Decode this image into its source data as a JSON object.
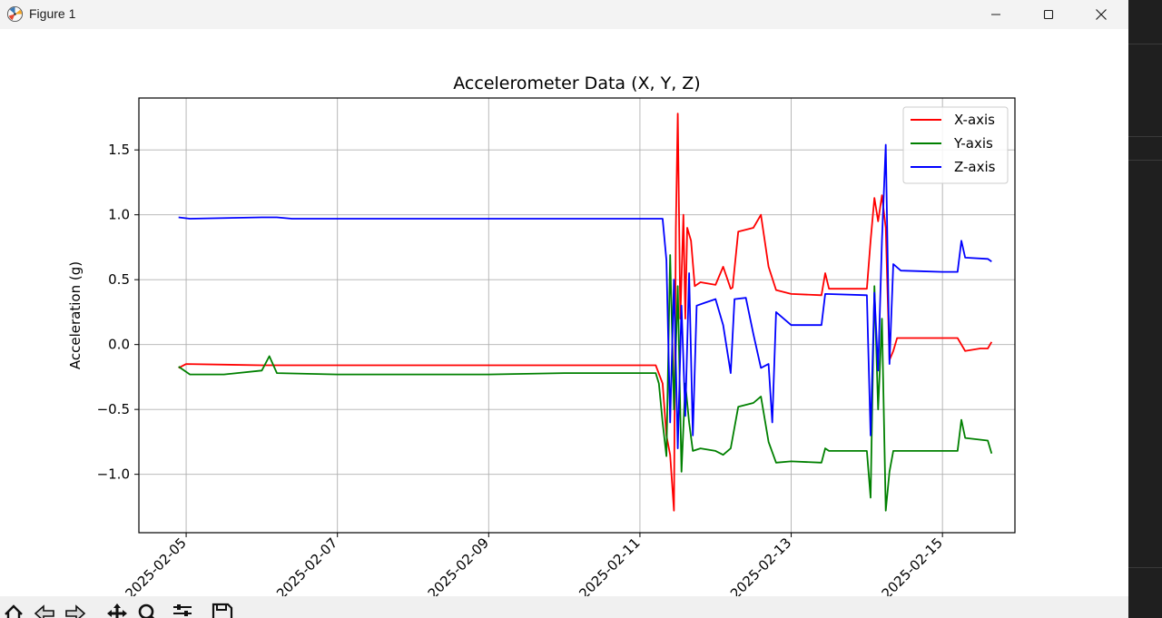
{
  "window": {
    "title": "Figure 1"
  },
  "toolbar": {
    "buttons": [
      "home-icon",
      "back-icon",
      "forward-icon",
      "pan-icon",
      "zoom-icon",
      "configure-icon",
      "save-icon"
    ]
  },
  "colors": {
    "x": "#ff0000",
    "y": "#008000",
    "z": "#0000ff"
  },
  "chart_data": {
    "type": "line",
    "title": "Accelerometer Data (X, Y, Z)",
    "xlabel": "",
    "ylabel": "Acceleration (g)",
    "x_type": "date",
    "xlim": [
      "2025-02-04 09:00",
      "2025-02-15 23:00"
    ],
    "ylim": [
      -1.45,
      1.9
    ],
    "xticks": [
      "2025-02-05",
      "2025-02-07",
      "2025-02-09",
      "2025-02-11",
      "2025-02-13",
      "2025-02-15"
    ],
    "yticks": [
      -1.0,
      -0.5,
      0.0,
      0.5,
      1.0,
      1.5
    ],
    "ytick_labels": [
      "−1.0",
      "−0.5",
      "0.0",
      "0.5",
      "1.0",
      "1.5"
    ],
    "grid": true,
    "legend": "top-right",
    "series": [
      {
        "name": "X-axis",
        "color": "#ff0000",
        "points": [
          [
            "2025-02-04 21:36",
            -0.18
          ],
          [
            "2025-02-05 00:00",
            -0.15
          ],
          [
            "2025-02-06 00:00",
            -0.16
          ],
          [
            "2025-02-07 00:00",
            -0.16
          ],
          [
            "2025-02-08 00:00",
            -0.16
          ],
          [
            "2025-02-09 00:00",
            -0.16
          ],
          [
            "2025-02-10 00:00",
            -0.16
          ],
          [
            "2025-02-11 00:00",
            -0.16
          ],
          [
            "2025-02-11 05:00",
            -0.16
          ],
          [
            "2025-02-11 07:12",
            -0.3
          ],
          [
            "2025-02-11 08:24",
            -0.7
          ],
          [
            "2025-02-11 09:36",
            -0.85
          ],
          [
            "2025-02-11 10:48",
            -1.28
          ],
          [
            "2025-02-11 11:24",
            0.9
          ],
          [
            "2025-02-11 12:00",
            1.78
          ],
          [
            "2025-02-11 12:48",
            0.2
          ],
          [
            "2025-02-11 13:48",
            1.0
          ],
          [
            "2025-02-11 14:24",
            0.2
          ],
          [
            "2025-02-11 15:00",
            0.9
          ],
          [
            "2025-02-11 16:12",
            0.8
          ],
          [
            "2025-02-11 17:24",
            0.45
          ],
          [
            "2025-02-11 19:12",
            0.48
          ],
          [
            "2025-02-12 00:00",
            0.46
          ],
          [
            "2025-02-12 02:24",
            0.6
          ],
          [
            "2025-02-12 04:48",
            0.43
          ],
          [
            "2025-02-12 05:24",
            0.44
          ],
          [
            "2025-02-12 07:12",
            0.87
          ],
          [
            "2025-02-12 12:00",
            0.9
          ],
          [
            "2025-02-12 14:24",
            1.0
          ],
          [
            "2025-02-12 15:36",
            0.8
          ],
          [
            "2025-02-12 16:48",
            0.6
          ],
          [
            "2025-02-12 19:12",
            0.42
          ],
          [
            "2025-02-13 00:00",
            0.39
          ],
          [
            "2025-02-13 09:36",
            0.38
          ],
          [
            "2025-02-13 10:48",
            0.55
          ],
          [
            "2025-02-13 12:00",
            0.43
          ],
          [
            "2025-02-14 00:00",
            0.43
          ],
          [
            "2025-02-14 01:12",
            0.8
          ],
          [
            "2025-02-14 02:24",
            1.13
          ],
          [
            "2025-02-14 03:36",
            0.95
          ],
          [
            "2025-02-14 04:48",
            1.15
          ],
          [
            "2025-02-14 06:00",
            0.9
          ],
          [
            "2025-02-14 07:12",
            -0.12
          ],
          [
            "2025-02-14 08:24",
            -0.05
          ],
          [
            "2025-02-14 09:36",
            0.05
          ],
          [
            "2025-02-15 00:00",
            0.05
          ],
          [
            "2025-02-15 04:48",
            0.05
          ],
          [
            "2025-02-15 07:12",
            -0.05
          ],
          [
            "2025-02-15 12:00",
            -0.03
          ],
          [
            "2025-02-15 14:24",
            -0.03
          ],
          [
            "2025-02-15 15:36",
            0.02
          ]
        ]
      },
      {
        "name": "Y-axis",
        "color": "#008000",
        "points": [
          [
            "2025-02-04 21:36",
            -0.17
          ],
          [
            "2025-02-05 01:12",
            -0.23
          ],
          [
            "2025-02-05 12:00",
            -0.23
          ],
          [
            "2025-02-06 00:00",
            -0.2
          ],
          [
            "2025-02-06 02:24",
            -0.09
          ],
          [
            "2025-02-06 04:48",
            -0.22
          ],
          [
            "2025-02-07 00:00",
            -0.23
          ],
          [
            "2025-02-08 00:00",
            -0.23
          ],
          [
            "2025-02-09 00:00",
            -0.23
          ],
          [
            "2025-02-10 00:00",
            -0.22
          ],
          [
            "2025-02-11 00:00",
            -0.22
          ],
          [
            "2025-02-11 05:00",
            -0.22
          ],
          [
            "2025-02-11 06:00",
            -0.3
          ],
          [
            "2025-02-11 07:12",
            -0.6
          ],
          [
            "2025-02-11 08:24",
            -0.86
          ],
          [
            "2025-02-11 09:36",
            0.69
          ],
          [
            "2025-02-11 10:48",
            -0.5
          ],
          [
            "2025-02-11 12:00",
            0.45
          ],
          [
            "2025-02-11 13:12",
            -0.98
          ],
          [
            "2025-02-11 14:24",
            -0.3
          ],
          [
            "2025-02-11 15:36",
            -0.6
          ],
          [
            "2025-02-11 16:48",
            -0.82
          ],
          [
            "2025-02-11 19:12",
            -0.8
          ],
          [
            "2025-02-12 00:00",
            -0.82
          ],
          [
            "2025-02-12 02:24",
            -0.85
          ],
          [
            "2025-02-12 04:48",
            -0.8
          ],
          [
            "2025-02-12 07:12",
            -0.48
          ],
          [
            "2025-02-12 12:00",
            -0.45
          ],
          [
            "2025-02-12 14:24",
            -0.4
          ],
          [
            "2025-02-12 16:48",
            -0.75
          ],
          [
            "2025-02-12 19:12",
            -0.91
          ],
          [
            "2025-02-13 00:00",
            -0.9
          ],
          [
            "2025-02-13 09:36",
            -0.91
          ],
          [
            "2025-02-13 10:48",
            -0.8
          ],
          [
            "2025-02-13 12:00",
            -0.82
          ],
          [
            "2025-02-14 00:00",
            -0.82
          ],
          [
            "2025-02-14 01:12",
            -1.18
          ],
          [
            "2025-02-14 02:24",
            0.45
          ],
          [
            "2025-02-14 03:36",
            -0.5
          ],
          [
            "2025-02-14 04:48",
            0.2
          ],
          [
            "2025-02-14 06:00",
            -1.28
          ],
          [
            "2025-02-14 07:12",
            -0.98
          ],
          [
            "2025-02-14 08:24",
            -0.82
          ],
          [
            "2025-02-15 00:00",
            -0.82
          ],
          [
            "2025-02-15 04:48",
            -0.82
          ],
          [
            "2025-02-15 06:00",
            -0.58
          ],
          [
            "2025-02-15 07:12",
            -0.72
          ],
          [
            "2025-02-15 14:24",
            -0.74
          ],
          [
            "2025-02-15 15:36",
            -0.84
          ]
        ]
      },
      {
        "name": "Z-axis",
        "color": "#0000ff",
        "points": [
          [
            "2025-02-04 21:36",
            0.98
          ],
          [
            "2025-02-05 01:12",
            0.97
          ],
          [
            "2025-02-06 00:00",
            0.98
          ],
          [
            "2025-02-06 04:48",
            0.98
          ],
          [
            "2025-02-06 09:36",
            0.97
          ],
          [
            "2025-02-07 00:00",
            0.97
          ],
          [
            "2025-02-08 00:00",
            0.97
          ],
          [
            "2025-02-09 00:00",
            0.97
          ],
          [
            "2025-02-10 00:00",
            0.97
          ],
          [
            "2025-02-11 00:00",
            0.97
          ],
          [
            "2025-02-11 07:12",
            0.97
          ],
          [
            "2025-02-11 08:24",
            0.65
          ],
          [
            "2025-02-11 09:36",
            -0.6
          ],
          [
            "2025-02-11 10:48",
            0.5
          ],
          [
            "2025-02-11 12:00",
            -0.8
          ],
          [
            "2025-02-11 13:12",
            0.3
          ],
          [
            "2025-02-11 14:24",
            -0.55
          ],
          [
            "2025-02-11 15:36",
            0.55
          ],
          [
            "2025-02-11 16:48",
            -0.7
          ],
          [
            "2025-02-11 18:00",
            0.3
          ],
          [
            "2025-02-11 20:24",
            0.32
          ],
          [
            "2025-02-12 00:00",
            0.35
          ],
          [
            "2025-02-12 02:24",
            0.15
          ],
          [
            "2025-02-12 04:48",
            -0.22
          ],
          [
            "2025-02-12 06:00",
            0.35
          ],
          [
            "2025-02-12 09:36",
            0.36
          ],
          [
            "2025-02-12 12:00",
            0.08
          ],
          [
            "2025-02-12 14:24",
            -0.18
          ],
          [
            "2025-02-12 16:48",
            -0.15
          ],
          [
            "2025-02-12 18:00",
            -0.6
          ],
          [
            "2025-02-12 19:12",
            0.25
          ],
          [
            "2025-02-13 00:00",
            0.15
          ],
          [
            "2025-02-13 09:36",
            0.15
          ],
          [
            "2025-02-13 10:48",
            0.39
          ],
          [
            "2025-02-14 00:00",
            0.38
          ],
          [
            "2025-02-14 01:12",
            -0.7
          ],
          [
            "2025-02-14 02:24",
            0.4
          ],
          [
            "2025-02-14 03:36",
            -0.2
          ],
          [
            "2025-02-14 04:48",
            0.8
          ],
          [
            "2025-02-14 06:00",
            1.54
          ],
          [
            "2025-02-14 07:12",
            -0.15
          ],
          [
            "2025-02-14 08:24",
            0.62
          ],
          [
            "2025-02-14 10:48",
            0.57
          ],
          [
            "2025-02-15 00:00",
            0.56
          ],
          [
            "2025-02-15 04:48",
            0.56
          ],
          [
            "2025-02-15 06:00",
            0.8
          ],
          [
            "2025-02-15 07:12",
            0.67
          ],
          [
            "2025-02-15 14:24",
            0.66
          ],
          [
            "2025-02-15 15:36",
            0.64
          ]
        ]
      }
    ]
  }
}
